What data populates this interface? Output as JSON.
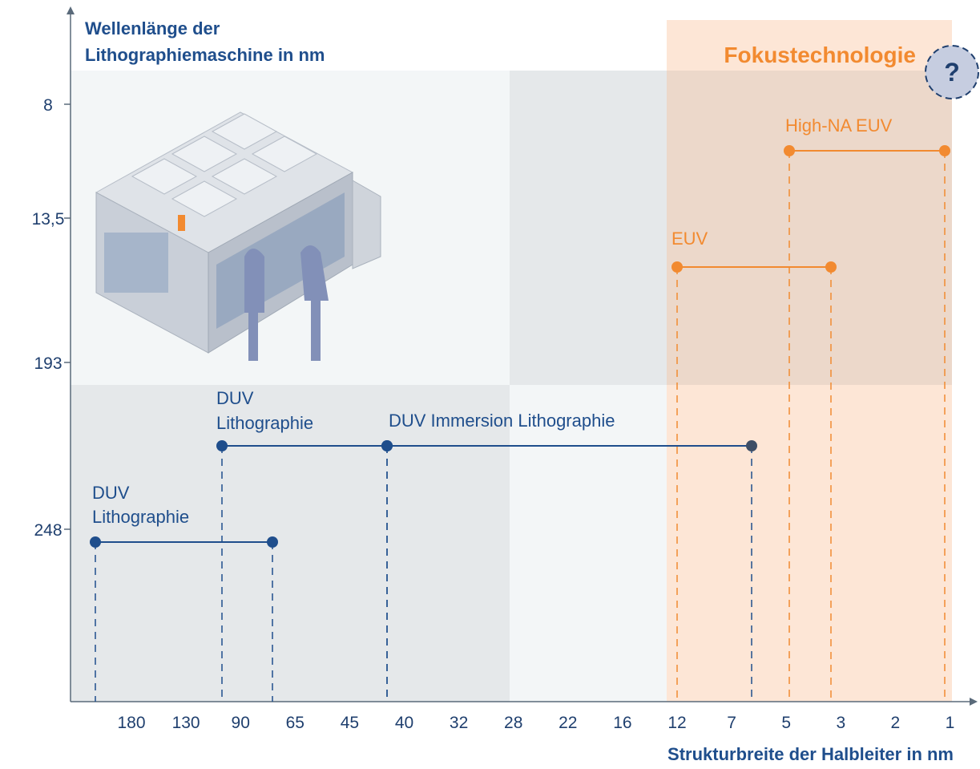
{
  "axes": {
    "y_title_lines": [
      "Wellenlänge der",
      "Lithographiemaschine in nm"
    ],
    "x_title": "Strukturbreite der Halbleiter in nm",
    "y_labels": [
      "8",
      "13,5",
      "193",
      "248"
    ],
    "x_labels": [
      "180",
      "130",
      "90",
      "65",
      "45",
      "40",
      "32",
      "28",
      "22",
      "16",
      "12",
      "7",
      "5",
      "3",
      "2",
      "1"
    ]
  },
  "focus": {
    "label": "Fokustechnologie",
    "icon": "?"
  },
  "ranges": [
    {
      "label_lines": [
        "DUV",
        "Lithographie"
      ]
    },
    {
      "label_lines": [
        "DUV",
        "Lithographie"
      ]
    },
    {
      "label_lines": [
        "DUV Immersion Lithographie"
      ]
    },
    {
      "label_lines": [
        "EUV"
      ]
    },
    {
      "label_lines": [
        "High-NA EUV"
      ]
    }
  ]
}
